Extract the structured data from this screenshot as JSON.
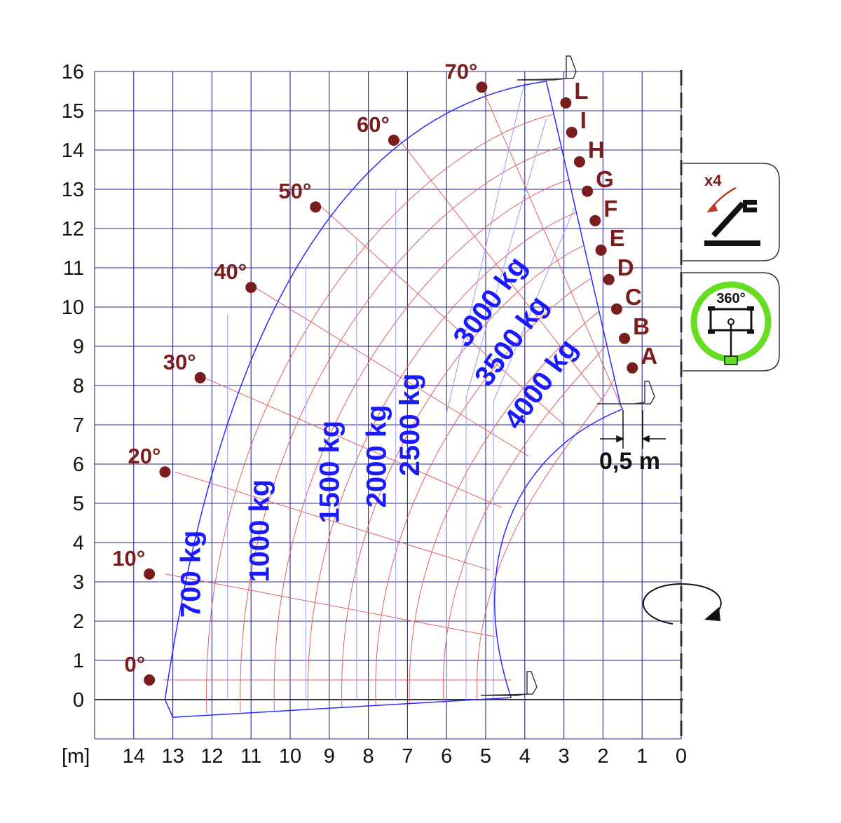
{
  "chart_data": {
    "type": "load chart",
    "unit_label": "[m]",
    "x_ticks": [
      "14",
      "13",
      "12",
      "11",
      "10",
      "9",
      "8",
      "7",
      "6",
      "5",
      "4",
      "3",
      "2",
      "1",
      "0"
    ],
    "y_ticks": [
      "0",
      "1",
      "2",
      "3",
      "4",
      "5",
      "6",
      "7",
      "8",
      "9",
      "10",
      "11",
      "12",
      "13",
      "14",
      "15",
      "16"
    ],
    "xlim": [
      15,
      0
    ],
    "ylim": [
      -1,
      16
    ],
    "angle_markers": [
      {
        "label": "0°",
        "x": 13.6,
        "y": 0.5
      },
      {
        "label": "10°",
        "x": 13.6,
        "y": 3.2
      },
      {
        "label": "20°",
        "x": 13.2,
        "y": 5.8
      },
      {
        "label": "30°",
        "x": 12.3,
        "y": 8.2
      },
      {
        "label": "40°",
        "x": 11.0,
        "y": 10.5
      },
      {
        "label": "50°",
        "x": 9.35,
        "y": 12.55
      },
      {
        "label": "60°",
        "x": 7.35,
        "y": 14.25
      },
      {
        "label": "70°",
        "x": 5.1,
        "y": 15.6
      }
    ],
    "extension_markers": [
      {
        "label": "A",
        "x": 1.25,
        "y": 8.45
      },
      {
        "label": "B",
        "x": 1.45,
        "y": 9.2
      },
      {
        "label": "C",
        "x": 1.65,
        "y": 9.95
      },
      {
        "label": "D",
        "x": 1.85,
        "y": 10.7
      },
      {
        "label": "E",
        "x": 2.05,
        "y": 11.45
      },
      {
        "label": "F",
        "x": 2.2,
        "y": 12.2
      },
      {
        "label": "G",
        "x": 2.4,
        "y": 12.95
      },
      {
        "label": "H",
        "x": 2.6,
        "y": 13.7
      },
      {
        "label": "I",
        "x": 2.8,
        "y": 14.45
      },
      {
        "label": "L",
        "x": 2.95,
        "y": 15.2
      }
    ],
    "load_zones": [
      {
        "label": "700 kg",
        "x": 12.3,
        "y": 3.2
      },
      {
        "label": "1000 kg",
        "x": 10.55,
        "y": 4.3
      },
      {
        "label": "1500 kg",
        "x": 8.75,
        "y": 5.8
      },
      {
        "label": "2000 kg",
        "x": 7.55,
        "y": 6.2
      },
      {
        "label": "2500 kg",
        "x": 6.7,
        "y": 7.0
      },
      {
        "label": "3000 kg",
        "x": 4.7,
        "y": 10.0
      },
      {
        "label": "3500 kg",
        "x": 4.15,
        "y": 9.0
      },
      {
        "label": "4000 kg",
        "x": 3.4,
        "y": 7.9
      }
    ],
    "dimension_label": "0,5 m",
    "outriggers_icon_label": "x4",
    "rotation_icon_label": "360°",
    "colors": {
      "grid": "#2a2a8a",
      "envelope": "#2b2bff",
      "arc_lines": "#e06060",
      "zone_lines": "#9a9aff",
      "markers": "#7a1d1d",
      "load_text": "#1a1aff",
      "rotation_ring": "#66dd22"
    }
  }
}
